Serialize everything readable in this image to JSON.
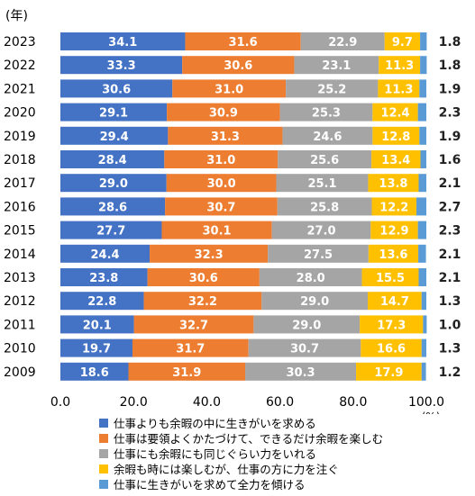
{
  "chart_data": {
    "type": "bar",
    "orientation": "horizontal",
    "stacked": true,
    "year_unit_label": "(年)",
    "x_unit_label": "(%)",
    "xlim": [
      0,
      100
    ],
    "x_ticks": [
      "0.0",
      "20.0",
      "40.0",
      "60.0",
      "80.0",
      "100.0"
    ],
    "categories": [
      "2023",
      "2022",
      "2021",
      "2020",
      "2019",
      "2018",
      "2017",
      "2016",
      "2015",
      "2014",
      "2013",
      "2012",
      "2011",
      "2010",
      "2009"
    ],
    "series": [
      {
        "name": "仕事よりも余暇の中に生きがいを求める",
        "color": "#4472C4",
        "values": [
          34.1,
          33.3,
          30.6,
          29.1,
          29.4,
          28.4,
          29.0,
          28.6,
          27.7,
          24.4,
          23.8,
          22.8,
          20.1,
          19.7,
          18.6
        ]
      },
      {
        "name": "仕事は要領よくかたづけて、できるだけ余暇を楽しむ",
        "color": "#ED7D31",
        "values": [
          31.6,
          30.6,
          31.0,
          30.9,
          31.3,
          31.0,
          30.0,
          30.7,
          30.1,
          32.3,
          30.6,
          32.2,
          32.7,
          31.7,
          31.9
        ]
      },
      {
        "name": "仕事にも余暇にも同じぐらい力をいれる",
        "color": "#A5A5A5",
        "values": [
          22.9,
          23.1,
          25.2,
          25.3,
          24.6,
          25.6,
          25.1,
          25.8,
          27.0,
          27.5,
          28.0,
          29.0,
          29.0,
          30.7,
          30.3
        ]
      },
      {
        "name": "余暇も時には楽しむが、仕事の方に力を注ぐ",
        "color": "#FFC000",
        "values": [
          9.7,
          11.3,
          11.3,
          12.4,
          12.8,
          13.4,
          13.8,
          12.2,
          12.9,
          13.6,
          15.5,
          14.7,
          17.3,
          16.6,
          17.9
        ]
      },
      {
        "name": "仕事に生きがいを求めて全力を傾ける",
        "color": "#5B9BD5",
        "values": [
          1.8,
          1.8,
          1.9,
          2.3,
          1.9,
          1.6,
          2.1,
          2.7,
          2.3,
          2.1,
          2.1,
          1.3,
          1.0,
          1.3,
          1.2
        ]
      }
    ],
    "value_labels": {
      "segments": [
        [
          "34.1",
          "31.6",
          "22.9",
          "9.7"
        ],
        [
          "33.3",
          "30.6",
          "23.1",
          "11.3"
        ],
        [
          "30.6",
          "31.0",
          "25.2",
          "11.3"
        ],
        [
          "29.1",
          "30.9",
          "25.3",
          "12.4"
        ],
        [
          "29.4",
          "31.3",
          "24.6",
          "12.8"
        ],
        [
          "28.4",
          "31.0",
          "25.6",
          "13.4"
        ],
        [
          "29.0",
          "30.0",
          "25.1",
          "13.8"
        ],
        [
          "28.6",
          "30.7",
          "25.8",
          "12.2"
        ],
        [
          "27.7",
          "30.1",
          "27.0",
          "12.9"
        ],
        [
          "24.4",
          "32.3",
          "27.5",
          "13.6"
        ],
        [
          "23.8",
          "30.6",
          "28.0",
          "15.5"
        ],
        [
          "22.8",
          "32.2",
          "29.0",
          "14.7"
        ],
        [
          "20.1",
          "32.7",
          "29.0",
          "17.3"
        ],
        [
          "19.7",
          "31.7",
          "30.7",
          "16.6"
        ],
        [
          "18.6",
          "31.9",
          "30.3",
          "17.9"
        ]
      ],
      "last_series": [
        "1.8",
        "1.8",
        "1.9",
        "2.3",
        "1.9",
        "1.6",
        "2.1",
        "2.7",
        "2.3",
        "2.1",
        "2.1",
        "1.3",
        "1.0",
        "1.3",
        "1.2"
      ]
    },
    "legend_position": "bottom",
    "grid": false
  }
}
